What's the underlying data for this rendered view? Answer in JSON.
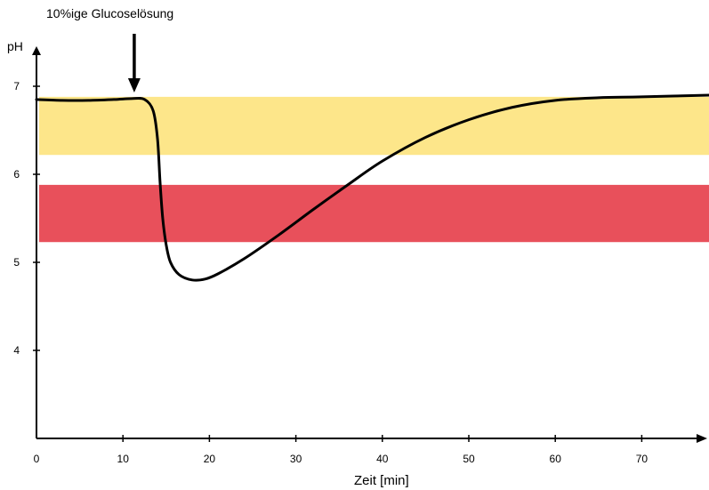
{
  "chart_data": {
    "type": "line",
    "annotation": {
      "text": "10%ige Glucoselösung",
      "x": 11
    },
    "xlabel": "Zeit [min]",
    "ylabel": "pH",
    "xlim": [
      0,
      78
    ],
    "ylim": [
      3,
      7.5
    ],
    "x_ticks": [
      0,
      10,
      20,
      30,
      40,
      50,
      60,
      70
    ],
    "y_ticks": [
      4,
      5,
      6,
      7
    ],
    "bands": [
      {
        "name": "yellow",
        "y0": 6.22,
        "y1": 6.88,
        "color": "#fde68a"
      },
      {
        "name": "red",
        "y0": 5.23,
        "y1": 5.88,
        "color": "#e8505b"
      }
    ],
    "series": [
      {
        "color": "#000000",
        "x": [
          0,
          3,
          6,
          9,
          11,
          12.5,
          13.5,
          14,
          14.3,
          14.6,
          15,
          15.5,
          16.5,
          18,
          19.5,
          21,
          24,
          28,
          32,
          36,
          40,
          45,
          50,
          55,
          60,
          65,
          70,
          78
        ],
        "y": [
          6.85,
          6.84,
          6.84,
          6.85,
          6.86,
          6.85,
          6.72,
          6.4,
          5.9,
          5.5,
          5.2,
          5.0,
          4.86,
          4.8,
          4.81,
          4.87,
          5.04,
          5.31,
          5.6,
          5.88,
          6.15,
          6.42,
          6.62,
          6.76,
          6.84,
          6.87,
          6.88,
          6.9
        ]
      }
    ]
  }
}
